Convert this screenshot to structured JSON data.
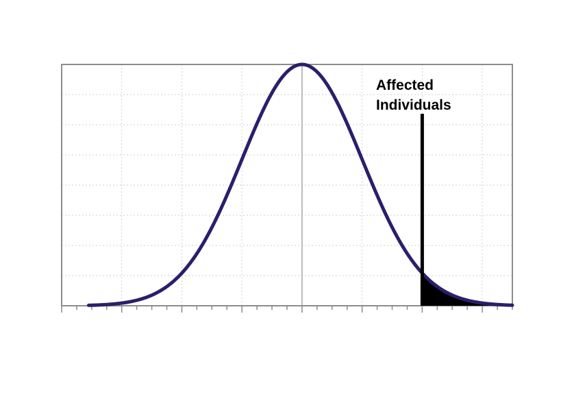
{
  "chart_data": {
    "type": "area",
    "title": "",
    "xlabel": "",
    "ylabel": "",
    "distribution": "normal",
    "mean": 0,
    "sd": 1,
    "xlim": [
      -4,
      3.5
    ],
    "ylim": [
      0,
      1
    ],
    "threshold": 2,
    "shaded_region": [
      2,
      3.5
    ],
    "grid": true,
    "colors": {
      "curve": "#2b1f6b",
      "shade": "#000000",
      "frame": "#8c8c8c",
      "grid": "#cfcfcf"
    },
    "annotation": {
      "lines": [
        "Affected",
        "Individuals"
      ]
    }
  }
}
